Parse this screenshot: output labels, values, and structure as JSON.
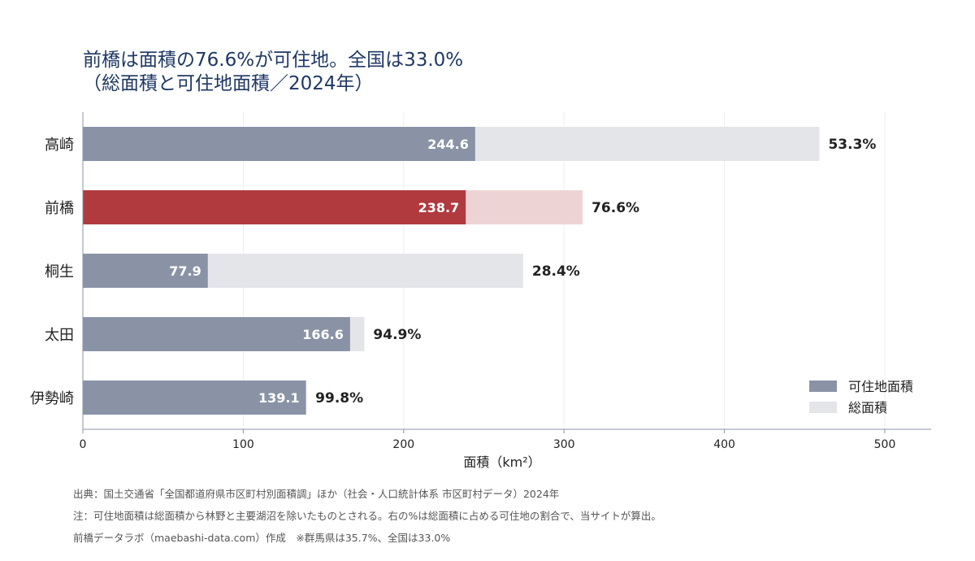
{
  "title_line1": "前橋は面積の76.6%が可住地。全国は33.0%",
  "title_line2": "（総面積と可住地面積／2024年）",
  "colors": {
    "habitable": "#8a93a6",
    "total": "#e4e5e9",
    "highlight_habitable": "#b03a3e",
    "highlight_total": "#eed3d5",
    "axis": "#8a93a6",
    "grid": "#eeeeee"
  },
  "chart_data": {
    "type": "bar",
    "orientation": "horizontal",
    "categories": [
      "高崎",
      "前橋",
      "桐生",
      "太田",
      "伊勢崎"
    ],
    "series": [
      {
        "name": "可住地面積",
        "values": [
          244.6,
          238.7,
          77.9,
          166.6,
          139.1
        ]
      },
      {
        "name": "総面積",
        "values": [
          459.2,
          311.6,
          274.5,
          175.5,
          139.4
        ]
      }
    ],
    "value_labels": [
      "244.6",
      "238.7",
      "77.9",
      "166.6",
      "139.1"
    ],
    "percent_labels": [
      "53.3%",
      "76.6%",
      "28.4%",
      "94.9%",
      "99.8%"
    ],
    "highlight_category": "前橋",
    "xlabel": "面積（km²）",
    "xlim": [
      0,
      530
    ],
    "xticks": [
      0,
      100,
      200,
      300,
      400,
      500
    ],
    "grid": "vertical",
    "legend_position": "bottom-right"
  },
  "notes": [
    "出典：国土交通省「全国都道府県市区町村別面積調」ほか（社会・人口統計体系 市区町村データ）2024年",
    "注：可住地面積は総面積から林野と主要湖沼を除いたものとされる。右の%は総面積に占める可住地の割合で、当サイトが算出。",
    "前橋データラボ（maebashi-data.com）作成　※群馬県は35.7%、全国は33.0%"
  ]
}
